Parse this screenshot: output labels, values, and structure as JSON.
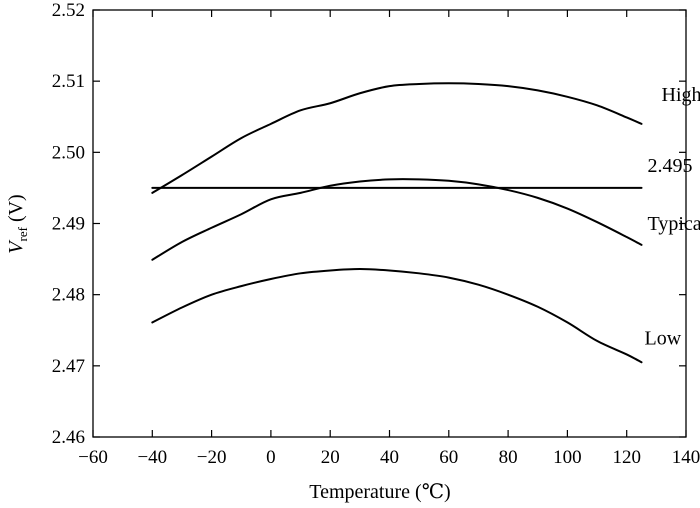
{
  "chart_data": {
    "type": "line",
    "title": "",
    "xlabel": "Temperature (℃)",
    "ylabel": {
      "main": "V",
      "sub": "ref",
      "unit": " (V)"
    },
    "xlim": [
      -60,
      140
    ],
    "ylim": [
      2.46,
      2.52
    ],
    "xticks": [
      "−60",
      "−40",
      "−20",
      "0",
      "20",
      "40",
      "60",
      "80",
      "100",
      "120",
      "140"
    ],
    "yticks": [
      "2.46",
      "2.47",
      "2.48",
      "2.49",
      "2.50",
      "2.51",
      "2.52"
    ],
    "grid": false,
    "series": [
      {
        "name": "High",
        "x": [
          -40,
          -30,
          -20,
          -10,
          0,
          10,
          20,
          30,
          40,
          50,
          60,
          70,
          80,
          90,
          100,
          110,
          120,
          125
        ],
        "y": [
          2.4943,
          2.4968,
          2.4994,
          2.502,
          2.504,
          2.5059,
          2.5069,
          2.5083,
          2.5093,
          2.5096,
          2.5097,
          2.5096,
          2.5093,
          2.5087,
          2.5078,
          2.5066,
          2.5049,
          2.504
        ]
      },
      {
        "name": "2.495",
        "x": [
          -40,
          125
        ],
        "y": [
          2.495,
          2.495
        ]
      },
      {
        "name": "Typical",
        "x": [
          -40,
          -30,
          -20,
          -10,
          0,
          10,
          20,
          30,
          40,
          50,
          60,
          70,
          80,
          90,
          100,
          110,
          120,
          125
        ],
        "y": [
          2.4849,
          2.4874,
          2.4894,
          2.4913,
          2.4934,
          2.4943,
          2.4953,
          2.4959,
          2.4962,
          2.4962,
          2.496,
          2.4955,
          2.4947,
          2.4936,
          2.4921,
          2.4902,
          2.4881,
          2.487
        ]
      },
      {
        "name": "Low",
        "x": [
          -40,
          -30,
          -20,
          -10,
          0,
          10,
          20,
          30,
          40,
          50,
          60,
          70,
          80,
          90,
          100,
          110,
          120,
          125
        ],
        "y": [
          2.4761,
          2.4782,
          2.48,
          2.4812,
          2.4822,
          2.483,
          2.4834,
          2.4836,
          2.4834,
          2.483,
          2.4824,
          2.4814,
          2.48,
          2.4783,
          2.4761,
          2.4735,
          2.4716,
          2.4705
        ]
      }
    ],
    "annotations": [
      {
        "text": "High",
        "series": "High"
      },
      {
        "text": "2.495",
        "series": "2.495"
      },
      {
        "text": "Typical",
        "series": "Typical"
      },
      {
        "text": "Low",
        "series": "Low"
      }
    ]
  }
}
